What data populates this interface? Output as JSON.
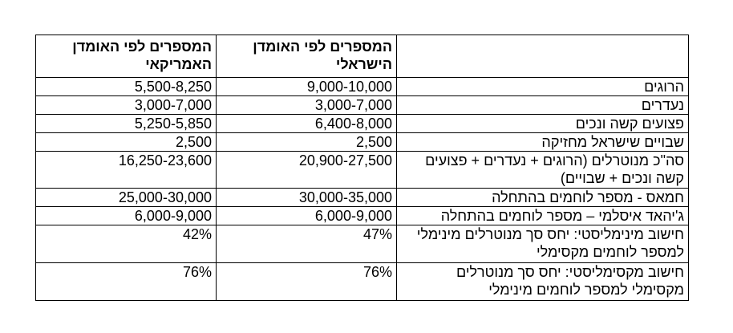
{
  "table": {
    "headers": [
      "",
      "המספרים לפי האומדן הישראלי",
      "המספרים לפי האומדן האמריקאי"
    ],
    "rows": [
      [
        "הרוגים",
        "9,000-10,000",
        "5,500-8,250"
      ],
      [
        "נעדרים",
        "3,000-7,000",
        "3,000-7,000"
      ],
      [
        "פצועים קשה ונכים",
        "6,400-8,000",
        "5,250-5,850"
      ],
      [
        "שבויים שישראל מחזיקה",
        "2,500",
        "2,500"
      ],
      [
        "סה\"כ מנוטרלים (הרוגים + נעדרים + פצועים קשה ונכים + שבויים)",
        "20,900-27,500",
        "16,250-23,600"
      ],
      [
        "חמאס - מספר לוחמים בהתחלה",
        "30,000-35,000",
        "25,000-30,000"
      ],
      [
        "ג'יהאד איסלמי – מספר לוחמים בהתחלה",
        "6,000-9,000",
        "6,000-9,000"
      ],
      [
        "חישוב מינימליסטי: יחס סך מנוטרלים מינימלי למספר לוחמים מקסימלי",
        "47%",
        "42%"
      ],
      [
        "חישוב מקסימליסטי: יחס סך מנוטרלים מקסימלי למספר לוחמים מינימלי",
        "76%",
        "76%"
      ]
    ]
  }
}
